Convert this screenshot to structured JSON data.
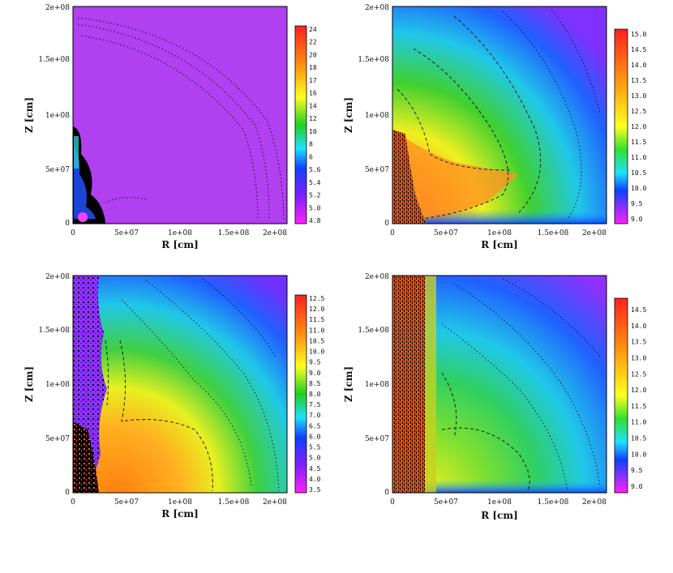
{
  "chart_data": [
    {
      "type": "heatmap",
      "panel": "top-left",
      "xlabel": "R [cm]",
      "ylabel": "Z [cm]",
      "xlim": [
        0,
        200000000.0
      ],
      "ylim": [
        0,
        200000000.0
      ],
      "x_ticks": [
        "0",
        "5e+07",
        "1e+08",
        "1.5e+08",
        "2e+08"
      ],
      "y_ticks": [
        "0",
        "5e+07",
        "1e+08",
        "1.5e+08",
        "2e+08"
      ],
      "colorbar": {
        "ticks": [
          "24",
          "22",
          "20",
          "18",
          "17",
          "16",
          "14",
          "12",
          "10",
          "8",
          "6",
          "5.6",
          "5.4",
          "5.2",
          "5.0",
          "4.8"
        ]
      },
      "background": "#b040f0",
      "colors": {
        "core_blue": "#2040ff",
        "core_teal": "#30c8c8",
        "hot_pink": "#ff40ff"
      }
    },
    {
      "type": "heatmap",
      "panel": "top-right",
      "xlabel": "R [cm]",
      "ylabel": "Z [cm]",
      "xlim": [
        0,
        200000000.0
      ],
      "ylim": [
        0,
        200000000.0
      ],
      "x_ticks": [
        "0",
        "5e+07",
        "1e+08",
        "1.5e+08",
        "2e+08"
      ],
      "y_ticks": [
        "0",
        "5e+07",
        "1e+08",
        "1.5e+08",
        "2e+08"
      ],
      "colorbar": {
        "ticks": [
          "15.0",
          "14.5",
          "14.0",
          "13.5",
          "13.0",
          "12.5",
          "12.0",
          "11.5",
          "11.0",
          "10.5",
          "10.0",
          "9.5",
          "9.0"
        ]
      }
    },
    {
      "type": "heatmap",
      "panel": "bottom-left",
      "xlabel": "R [cm]",
      "ylabel": "Z [cm]",
      "xlim": [
        0,
        200000000.0
      ],
      "ylim": [
        0,
        200000000.0
      ],
      "x_ticks": [
        "0",
        "5e+07",
        "1e+08",
        "1.5e+08",
        "2e+08"
      ],
      "y_ticks": [
        "0",
        "5e+07",
        "1e+08",
        "1.5e+08",
        "2e+08"
      ],
      "colorbar": {
        "ticks": [
          "12.5",
          "12.0",
          "11.5",
          "11.0",
          "10.5",
          "10.0",
          "9.5",
          "9.0",
          "8.5",
          "8.0",
          "7.5",
          "7.0",
          "6.5",
          "6.0",
          "5.5",
          "5.0",
          "4.5",
          "4.0",
          "3.5"
        ]
      }
    },
    {
      "type": "heatmap",
      "panel": "bottom-right",
      "xlabel": "R [cm]",
      "ylabel": "Z [cm]",
      "xlim": [
        0,
        200000000.0
      ],
      "ylim": [
        0,
        200000000.0
      ],
      "x_ticks": [
        "0",
        "5e+07",
        "1e+08",
        "1.5e+08",
        "2e+08"
      ],
      "y_ticks": [
        "0",
        "5e+07",
        "1e+08",
        "1.5e+08",
        "2e+08"
      ],
      "colorbar": {
        "ticks": [
          "14.5",
          "14.0",
          "13.5",
          "13.0",
          "12.5",
          "12.0",
          "11.5",
          "11.0",
          "10.5",
          "10.0",
          "9.5",
          "9.0"
        ]
      }
    }
  ]
}
